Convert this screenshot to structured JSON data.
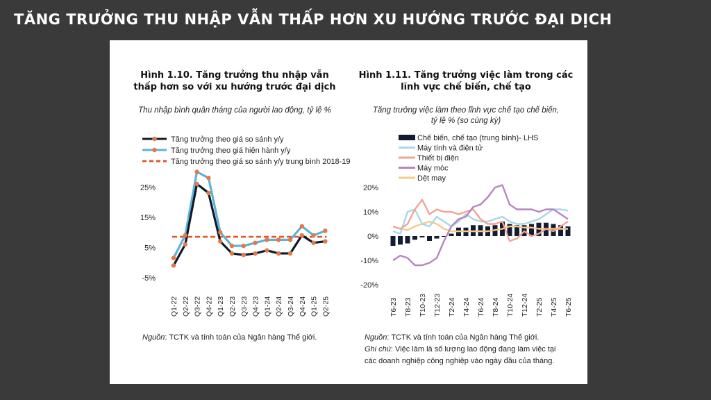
{
  "page": {
    "title": "TĂNG TRƯỞNG THU NHẬP VẪN THẤP HƠN XU HƯỚNG TRƯỚC ĐẠI DỊCH"
  },
  "left": {
    "title_line1": "Hình 1.10. Tăng trưởng thu nhập vẫn",
    "title_line2": "thấp hơn so với xu hướng trước đại dịch",
    "subtitle": "Thu nhập bình quân tháng của người lao động, tỷ lệ %",
    "source_label": "Nguồn",
    "source_text": ": TCTK và tính toán của Ngân hàng Thế giới."
  },
  "right": {
    "title_line1": "Hình 1.11. Tăng trưởng việc làm trong các",
    "title_line2": "lĩnh vực chế biến, chế tạo",
    "subtitle_line1": "Tăng trưởng việc làm theo lĩnh vực chế tạo chế biến,",
    "subtitle_line2": "tỷ lệ % (so cùng kỳ)",
    "source_label": "Nguồn",
    "source_text": ": TCTK và tính toán của Ngân hàng Thế giới.",
    "note_label": "Ghi chú",
    "note_text_line1": ": Việc làm là số lượng lao động đang làm việc tại",
    "note_text_line2": "các doanh nghiệp công nghiệp vào ngày đầu của tháng."
  },
  "colors": {
    "real": "#111827",
    "nominal": "#5fb2d6",
    "avg": "#e0552d",
    "marker": "#e07a4a",
    "bar": "#141c33",
    "computers": "#a9d6ea",
    "electrical": "#f2a294",
    "machinery": "#b784c0",
    "textiles": "#f7c98a"
  },
  "chart_data": [
    {
      "type": "line",
      "x": [
        "Q1-22",
        "Q2-22",
        "Q3-22",
        "Q4-22",
        "Q1-23",
        "Q2-23",
        "Q3-23",
        "Q4-23",
        "Q1-24",
        "Q2-24",
        "Q3-24",
        "Q4-24",
        "Q1-25",
        "Q2-25"
      ],
      "series": [
        {
          "name": "Tăng trưởng theo giá so sánh y/y",
          "values": [
            -1,
            6,
            26,
            23,
            7,
            3,
            2.5,
            3,
            4,
            3,
            3,
            9,
            6.5,
            7
          ]
        },
        {
          "name": "Tăng trưởng theo giá hiện hành y/y",
          "values": [
            1.5,
            9,
            30,
            28,
            10,
            5.5,
            5.5,
            6.5,
            7.5,
            7.5,
            7.5,
            12,
            9,
            10.5
          ]
        },
        {
          "name": "Tăng trưởng theo giá so sánh y/y trung bình 2018-19",
          "values": [
            8.5,
            8.5,
            8.5,
            8.5,
            8.5,
            8.5,
            8.5,
            8.5,
            8.5,
            8.5,
            8.5,
            8.5,
            8.5,
            8.5
          ]
        }
      ],
      "y_ticks": [
        "25%",
        "15%",
        "5%",
        "-5%"
      ],
      "ylim": [
        -5,
        30
      ]
    },
    {
      "type": "bar+line",
      "x_ticks": [
        "T6-23",
        "T8-23",
        "T10-23",
        "T12-23",
        "T2-24",
        "T4-24",
        "T6-24",
        "T8-24",
        "T10-24",
        "T12-24",
        "T2-25",
        "T4-25",
        "T6-25"
      ],
      "months": 25,
      "series": [
        {
          "name": "Chế biến, chế tạo (trung bình)- LHS",
          "kind": "bar",
          "values": [
            -4,
            -3.5,
            -3,
            -1.5,
            -0.5,
            -2,
            -1,
            0,
            1,
            3.5,
            3.5,
            4.5,
            4.5,
            4,
            4.5,
            6,
            5,
            4.5,
            4.5,
            5,
            5.5,
            5.5,
            5,
            4.5,
            4
          ]
        },
        {
          "name": "Máy tính và điện tử",
          "kind": "line",
          "values": [
            2,
            1,
            10,
            11,
            5,
            4,
            8,
            6,
            4,
            6,
            9,
            7,
            6,
            6,
            7,
            8,
            6,
            5,
            5,
            6,
            7,
            9,
            11,
            11,
            10.5
          ]
        },
        {
          "name": "Thiết bị điện",
          "kind": "line",
          "values": [
            4,
            3,
            5,
            11,
            15,
            9,
            11,
            10,
            10,
            9,
            10,
            11,
            7,
            5,
            5,
            6,
            -2,
            -1,
            2,
            0,
            1,
            3,
            2,
            4,
            6
          ]
        },
        {
          "name": "Máy móc",
          "kind": "line",
          "values": [
            -10,
            -8,
            -9,
            -12,
            -12,
            -11,
            -9,
            -2,
            4,
            7,
            8,
            12,
            13,
            16,
            20,
            21,
            13,
            11,
            11,
            11,
            10,
            11,
            11,
            9,
            7
          ]
        },
        {
          "name": "Dệt may",
          "kind": "line",
          "values": [
            4,
            3,
            2.5,
            4,
            5,
            6,
            5,
            3,
            2,
            2,
            2,
            2,
            2,
            2,
            2.5,
            3,
            4,
            4,
            3.5,
            3.5,
            3,
            3,
            3,
            3,
            3
          ]
        }
      ],
      "y_ticks": [
        "20%",
        "10%",
        "0%",
        "-10%",
        "-20%"
      ],
      "ylim": [
        -20,
        20
      ]
    }
  ]
}
